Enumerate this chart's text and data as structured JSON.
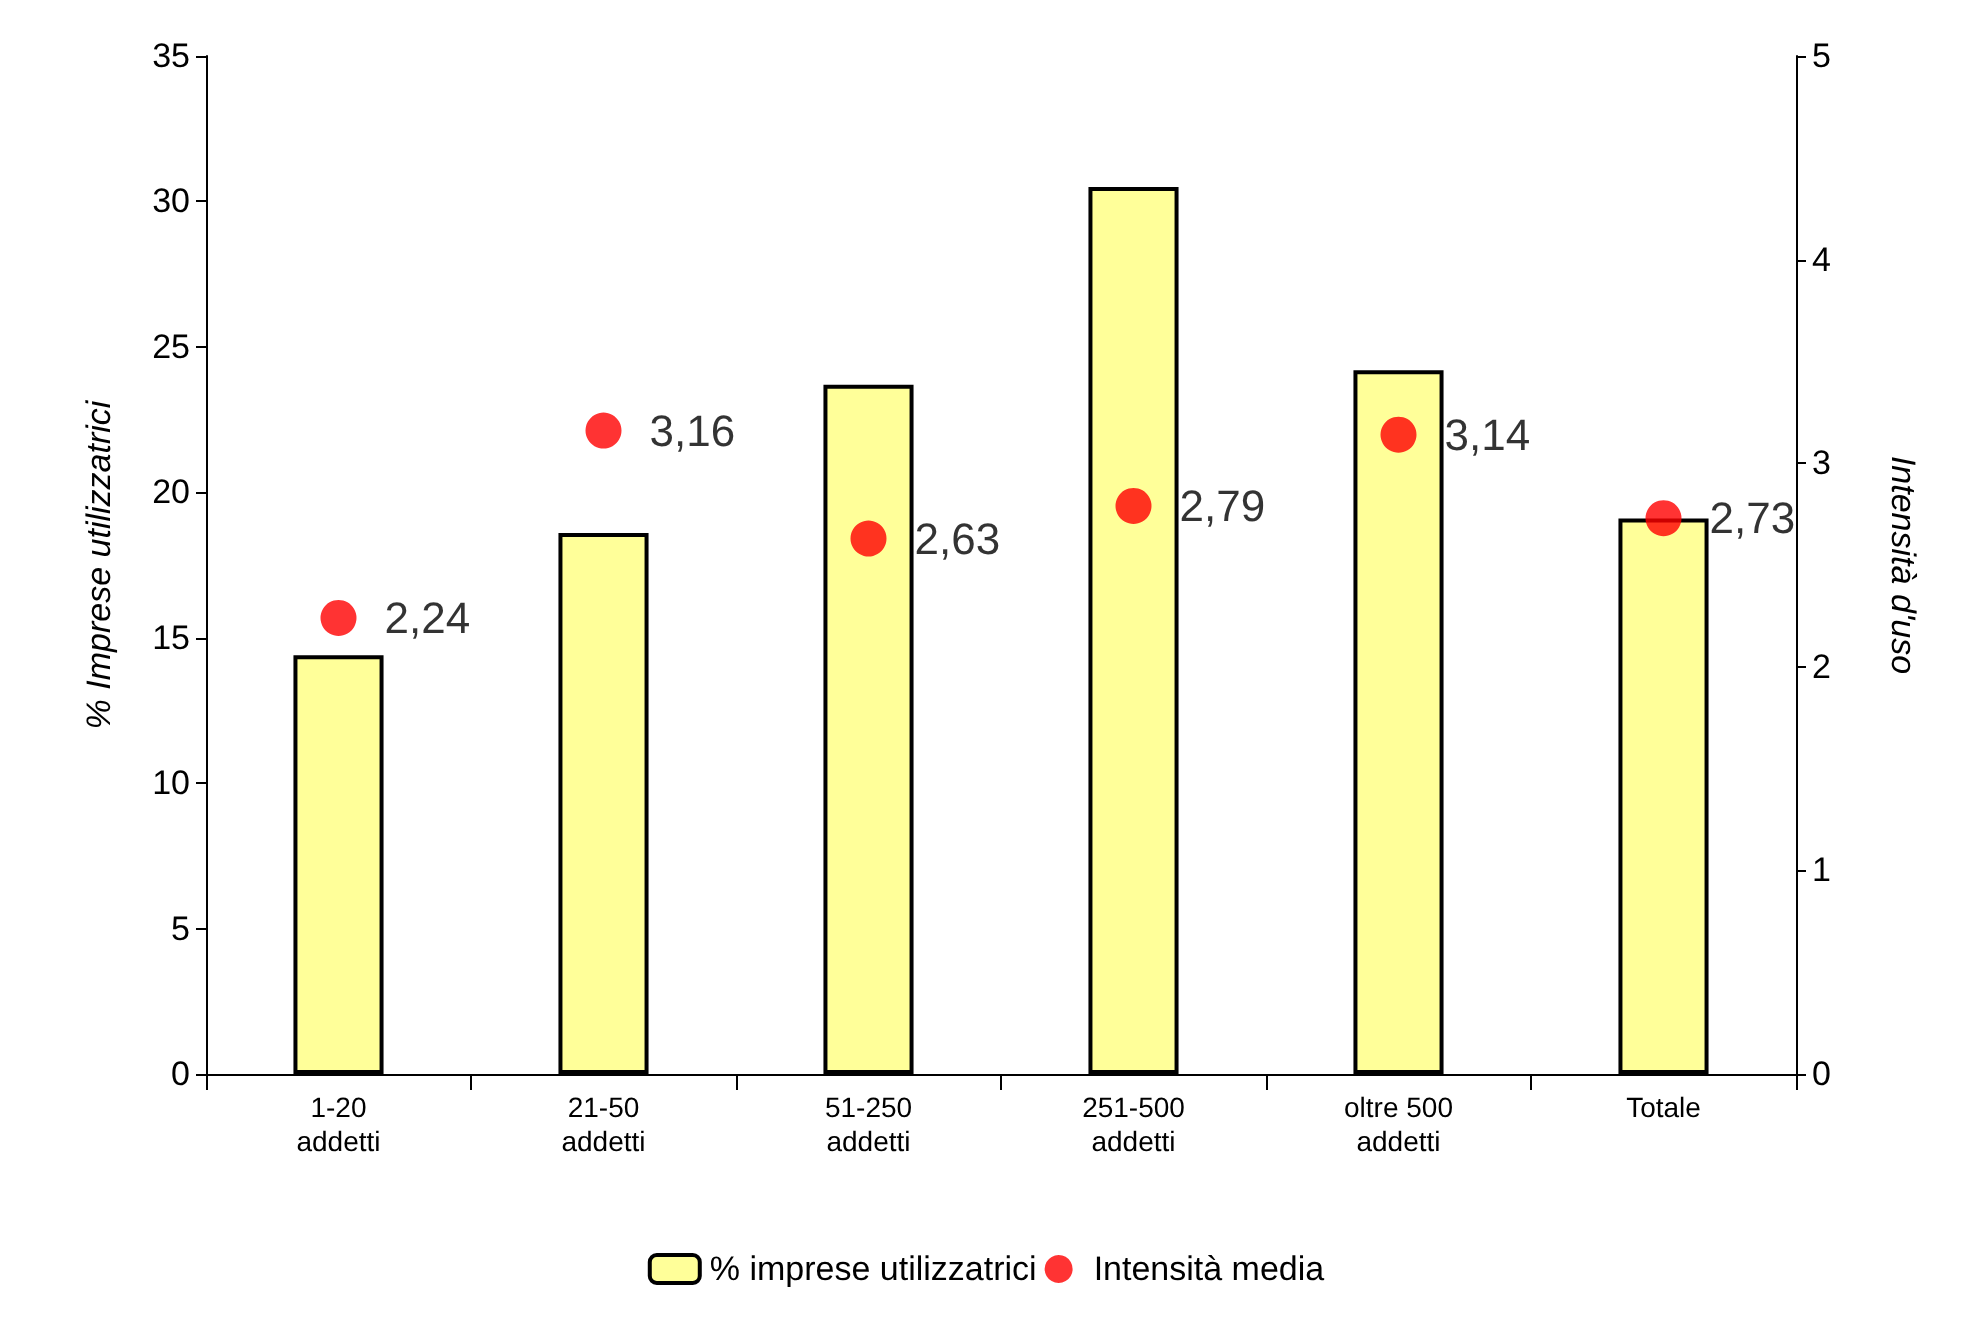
{
  "chart_data": {
    "type": "bar",
    "ylabel": "% Imprese utilizzatrici",
    "y2label": "Intensità d'uso",
    "categories": [
      "1-20\naddetti",
      "21-50\naddetti",
      "51-250\naddetti",
      "251-500\naddetti",
      "oltre 500\naddetti",
      "Totale"
    ],
    "series": [
      {
        "name": "% imprese utilizzatrici",
        "color": "#ffff99",
        "values": [
          14.4,
          18.6,
          23.7,
          30.5,
          24.2,
          19.1
        ]
      },
      {
        "name": "Intensità media",
        "type": "scatter",
        "axis": "y2",
        "color": "#ff0000",
        "marker": "circle",
        "values": [
          2.24,
          3.16,
          2.63,
          2.79,
          3.14,
          2.73
        ],
        "value_labels": [
          "2,24",
          "3,16",
          "2,63",
          "2,79",
          "3,14",
          "2,73"
        ]
      }
    ],
    "ylim": [
      0,
      35
    ],
    "yticks": [
      0,
      5,
      10,
      15,
      20,
      25,
      30,
      35
    ],
    "y2lim": [
      0,
      5
    ],
    "y2ticks": [
      0,
      1,
      2,
      3,
      4,
      5
    ],
    "grid": false,
    "legend": "bottom"
  }
}
